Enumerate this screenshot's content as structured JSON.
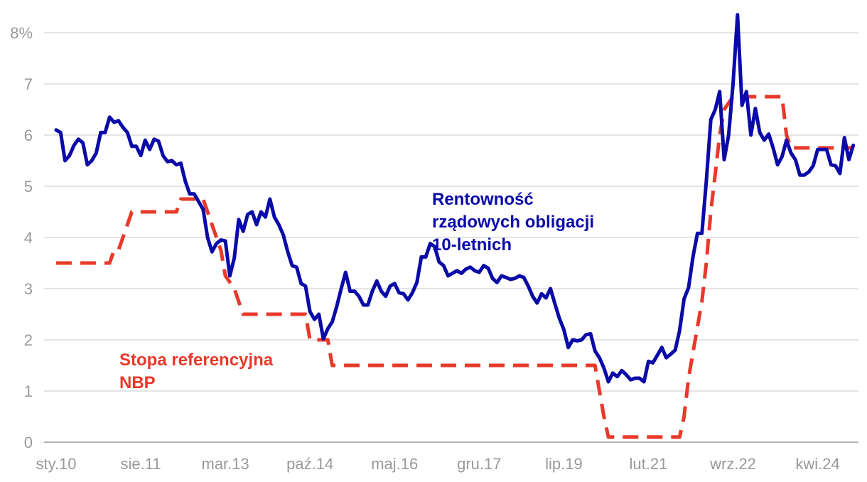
{
  "chart_data": {
    "type": "line",
    "xlabel": "",
    "ylabel": "",
    "ylim": [
      0,
      8
    ],
    "y_ticks": [
      {
        "value": 0,
        "label": "0"
      },
      {
        "value": 1,
        "label": "1"
      },
      {
        "value": 2,
        "label": "2"
      },
      {
        "value": 3,
        "label": "3"
      },
      {
        "value": 4,
        "label": "4"
      },
      {
        "value": 5,
        "label": "5"
      },
      {
        "value": 6,
        "label": "6"
      },
      {
        "value": 7,
        "label": "7"
      },
      {
        "value": 8,
        "label": "8%"
      }
    ],
    "x_ticks": [
      {
        "value": "2010-01",
        "label": "sty.10"
      },
      {
        "value": "2011-08",
        "label": "sie.11"
      },
      {
        "value": "2013-03",
        "label": "mar.13"
      },
      {
        "value": "2014-10",
        "label": "paź.14"
      },
      {
        "value": "2016-05",
        "label": "maj.16"
      },
      {
        "value": "2017-12",
        "label": "gru.17"
      },
      {
        "value": "2019-07",
        "label": "lip.19"
      },
      {
        "value": "2021-02",
        "label": "lut.21"
      },
      {
        "value": "2022-09",
        "label": "wrz.22"
      },
      {
        "value": "2024-04",
        "label": "kwi.24"
      }
    ],
    "grid": true,
    "series": [
      {
        "name": "Rentowność rządowych obligacji 10-letnich",
        "color": "#0a0aa8",
        "style": "solid",
        "points": [
          [
            "2010-01",
            6.1
          ],
          [
            "2010-02",
            6.05
          ],
          [
            "2010-03",
            5.5
          ],
          [
            "2010-04",
            5.6
          ],
          [
            "2010-05",
            5.8
          ],
          [
            "2010-06",
            5.92
          ],
          [
            "2010-07",
            5.85
          ],
          [
            "2010-08",
            5.42
          ],
          [
            "2010-09",
            5.5
          ],
          [
            "2010-10",
            5.65
          ],
          [
            "2010-11",
            6.05
          ],
          [
            "2010-12",
            6.05
          ],
          [
            "2011-01",
            6.35
          ],
          [
            "2011-02",
            6.25
          ],
          [
            "2011-03",
            6.28
          ],
          [
            "2011-04",
            6.15
          ],
          [
            "2011-05",
            6.05
          ],
          [
            "2011-06",
            5.78
          ],
          [
            "2011-07",
            5.78
          ],
          [
            "2011-08",
            5.6
          ],
          [
            "2011-09",
            5.9
          ],
          [
            "2011-10",
            5.72
          ],
          [
            "2011-11",
            5.92
          ],
          [
            "2011-12",
            5.88
          ],
          [
            "2012-01",
            5.6
          ],
          [
            "2012-02",
            5.48
          ],
          [
            "2012-03",
            5.5
          ],
          [
            "2012-04",
            5.42
          ],
          [
            "2012-05",
            5.45
          ],
          [
            "2012-06",
            5.1
          ],
          [
            "2012-07",
            4.85
          ],
          [
            "2012-08",
            4.85
          ],
          [
            "2012-09",
            4.7
          ],
          [
            "2012-10",
            4.55
          ],
          [
            "2012-11",
            4.0
          ],
          [
            "2012-12",
            3.72
          ],
          [
            "2013-01",
            3.88
          ],
          [
            "2013-02",
            3.95
          ],
          [
            "2013-03",
            3.93
          ],
          [
            "2013-04",
            3.25
          ],
          [
            "2013-05",
            3.6
          ],
          [
            "2013-06",
            4.35
          ],
          [
            "2013-07",
            4.12
          ],
          [
            "2013-08",
            4.45
          ],
          [
            "2013-09",
            4.5
          ],
          [
            "2013-10",
            4.25
          ],
          [
            "2013-11",
            4.5
          ],
          [
            "2013-12",
            4.4
          ],
          [
            "2014-01",
            4.75
          ],
          [
            "2014-02",
            4.4
          ],
          [
            "2014-03",
            4.25
          ],
          [
            "2014-04",
            4.05
          ],
          [
            "2014-05",
            3.72
          ],
          [
            "2014-06",
            3.45
          ],
          [
            "2014-07",
            3.42
          ],
          [
            "2014-08",
            3.1
          ],
          [
            "2014-09",
            3.05
          ],
          [
            "2014-10",
            2.55
          ],
          [
            "2014-11",
            2.4
          ],
          [
            "2014-12",
            2.5
          ],
          [
            "2015-01",
            2.02
          ],
          [
            "2015-02",
            2.22
          ],
          [
            "2015-03",
            2.35
          ],
          [
            "2015-04",
            2.65
          ],
          [
            "2015-05",
            3.0
          ],
          [
            "2015-06",
            3.32
          ],
          [
            "2015-07",
            2.95
          ],
          [
            "2015-08",
            2.95
          ],
          [
            "2015-09",
            2.85
          ],
          [
            "2015-10",
            2.68
          ],
          [
            "2015-11",
            2.68
          ],
          [
            "2015-12",
            2.95
          ],
          [
            "2016-01",
            3.15
          ],
          [
            "2016-02",
            2.95
          ],
          [
            "2016-03",
            2.85
          ],
          [
            "2016-04",
            3.05
          ],
          [
            "2016-05",
            3.1
          ],
          [
            "2016-06",
            2.92
          ],
          [
            "2016-07",
            2.9
          ],
          [
            "2016-08",
            2.78
          ],
          [
            "2016-09",
            2.92
          ],
          [
            "2016-10",
            3.12
          ],
          [
            "2016-11",
            3.62
          ],
          [
            "2016-12",
            3.62
          ],
          [
            "2017-01",
            3.88
          ],
          [
            "2017-02",
            3.82
          ],
          [
            "2017-03",
            3.52
          ],
          [
            "2017-04",
            3.45
          ],
          [
            "2017-05",
            3.25
          ],
          [
            "2017-06",
            3.3
          ],
          [
            "2017-07",
            3.35
          ],
          [
            "2017-08",
            3.3
          ],
          [
            "2017-09",
            3.38
          ],
          [
            "2017-10",
            3.42
          ],
          [
            "2017-11",
            3.35
          ],
          [
            "2017-12",
            3.32
          ],
          [
            "2018-01",
            3.45
          ],
          [
            "2018-02",
            3.4
          ],
          [
            "2018-03",
            3.2
          ],
          [
            "2018-04",
            3.12
          ],
          [
            "2018-05",
            3.25
          ],
          [
            "2018-06",
            3.22
          ],
          [
            "2018-07",
            3.18
          ],
          [
            "2018-08",
            3.2
          ],
          [
            "2018-09",
            3.25
          ],
          [
            "2018-10",
            3.22
          ],
          [
            "2018-11",
            3.05
          ],
          [
            "2018-12",
            2.85
          ],
          [
            "2019-01",
            2.72
          ],
          [
            "2019-02",
            2.9
          ],
          [
            "2019-03",
            2.82
          ],
          [
            "2019-04",
            3.0
          ],
          [
            "2019-05",
            2.7
          ],
          [
            "2019-06",
            2.42
          ],
          [
            "2019-07",
            2.2
          ],
          [
            "2019-08",
            1.85
          ],
          [
            "2019-09",
            2.0
          ],
          [
            "2019-10",
            1.98
          ],
          [
            "2019-11",
            2.0
          ],
          [
            "2019-12",
            2.1
          ],
          [
            "2020-01",
            2.12
          ],
          [
            "2020-02",
            1.78
          ],
          [
            "2020-03",
            1.65
          ],
          [
            "2020-04",
            1.45
          ],
          [
            "2020-05",
            1.18
          ],
          [
            "2020-06",
            1.35
          ],
          [
            "2020-07",
            1.28
          ],
          [
            "2020-08",
            1.4
          ],
          [
            "2020-09",
            1.32
          ],
          [
            "2020-10",
            1.22
          ],
          [
            "2020-11",
            1.25
          ],
          [
            "2020-12",
            1.25
          ],
          [
            "2021-01",
            1.18
          ],
          [
            "2021-02",
            1.58
          ],
          [
            "2021-03",
            1.55
          ],
          [
            "2021-04",
            1.7
          ],
          [
            "2021-05",
            1.85
          ],
          [
            "2021-06",
            1.65
          ],
          [
            "2021-07",
            1.72
          ],
          [
            "2021-08",
            1.8
          ],
          [
            "2021-09",
            2.18
          ],
          [
            "2021-10",
            2.8
          ],
          [
            "2021-11",
            3.02
          ],
          [
            "2021-12",
            3.62
          ],
          [
            "2022-01",
            4.08
          ],
          [
            "2022-02",
            4.08
          ],
          [
            "2022-03",
            5.1
          ],
          [
            "2022-04",
            6.3
          ],
          [
            "2022-05",
            6.5
          ],
          [
            "2022-06",
            6.85
          ],
          [
            "2022-07",
            5.52
          ],
          [
            "2022-08",
            6.0
          ],
          [
            "2022-09",
            7.0
          ],
          [
            "2022-10",
            8.35
          ],
          [
            "2022-11",
            6.58
          ],
          [
            "2022-12",
            6.85
          ],
          [
            "2023-01",
            6.0
          ],
          [
            "2023-02",
            6.52
          ],
          [
            "2023-03",
            6.05
          ],
          [
            "2023-04",
            5.9
          ],
          [
            "2023-05",
            6.02
          ],
          [
            "2023-06",
            5.75
          ],
          [
            "2023-07",
            5.42
          ],
          [
            "2023-08",
            5.58
          ],
          [
            "2023-09",
            5.9
          ],
          [
            "2023-10",
            5.65
          ],
          [
            "2023-11",
            5.52
          ],
          [
            "2023-12",
            5.22
          ],
          [
            "2024-01",
            5.22
          ],
          [
            "2024-02",
            5.28
          ],
          [
            "2024-03",
            5.4
          ],
          [
            "2024-04",
            5.72
          ],
          [
            "2024-05",
            5.72
          ],
          [
            "2024-06",
            5.72
          ],
          [
            "2024-07",
            5.42
          ],
          [
            "2024-08",
            5.4
          ],
          [
            "2024-09",
            5.25
          ],
          [
            "2024-10",
            5.95
          ],
          [
            "2024-11",
            5.52
          ],
          [
            "2024-12",
            5.8
          ]
        ]
      },
      {
        "name": "Stopa referencyjna NBP",
        "color": "#e8392a",
        "style": "dashed",
        "points": [
          [
            "2010-01",
            3.5
          ],
          [
            "2011-01",
            3.5
          ],
          [
            "2011-02",
            3.75
          ],
          [
            "2011-03",
            3.75
          ],
          [
            "2011-04",
            4.0
          ],
          [
            "2011-05",
            4.25
          ],
          [
            "2011-06",
            4.5
          ],
          [
            "2012-04",
            4.5
          ],
          [
            "2012-05",
            4.75
          ],
          [
            "2012-10",
            4.75
          ],
          [
            "2012-11",
            4.5
          ],
          [
            "2012-12",
            4.25
          ],
          [
            "2013-01",
            4.0
          ],
          [
            "2013-02",
            3.75
          ],
          [
            "2013-03",
            3.25
          ],
          [
            "2013-05",
            3.0
          ],
          [
            "2013-06",
            2.75
          ],
          [
            "2013-07",
            2.5
          ],
          [
            "2014-09",
            2.5
          ],
          [
            "2014-10",
            2.0
          ],
          [
            "2015-02",
            2.0
          ],
          [
            "2015-03",
            1.5
          ],
          [
            "2020-02",
            1.5
          ],
          [
            "2020-03",
            1.0
          ],
          [
            "2020-04",
            0.5
          ],
          [
            "2020-05",
            0.1
          ],
          [
            "2021-09",
            0.1
          ],
          [
            "2021-10",
            0.5
          ],
          [
            "2021-11",
            1.25
          ],
          [
            "2021-12",
            1.75
          ],
          [
            "2022-01",
            2.25
          ],
          [
            "2022-02",
            2.75
          ],
          [
            "2022-03",
            3.5
          ],
          [
            "2022-04",
            4.5
          ],
          [
            "2022-05",
            5.25
          ],
          [
            "2022-06",
            6.0
          ],
          [
            "2022-07",
            6.5
          ],
          [
            "2022-09",
            6.75
          ],
          [
            "2023-08",
            6.75
          ],
          [
            "2023-09",
            6.0
          ],
          [
            "2023-10",
            5.75
          ],
          [
            "2024-12",
            5.75
          ]
        ]
      }
    ]
  },
  "annotations": {
    "bond": {
      "lines": [
        "Rentowność",
        "rządowych obligacji",
        "10-letnich"
      ]
    },
    "rate": {
      "lines": [
        "Stopa referencyjna",
        "NBP"
      ]
    }
  }
}
